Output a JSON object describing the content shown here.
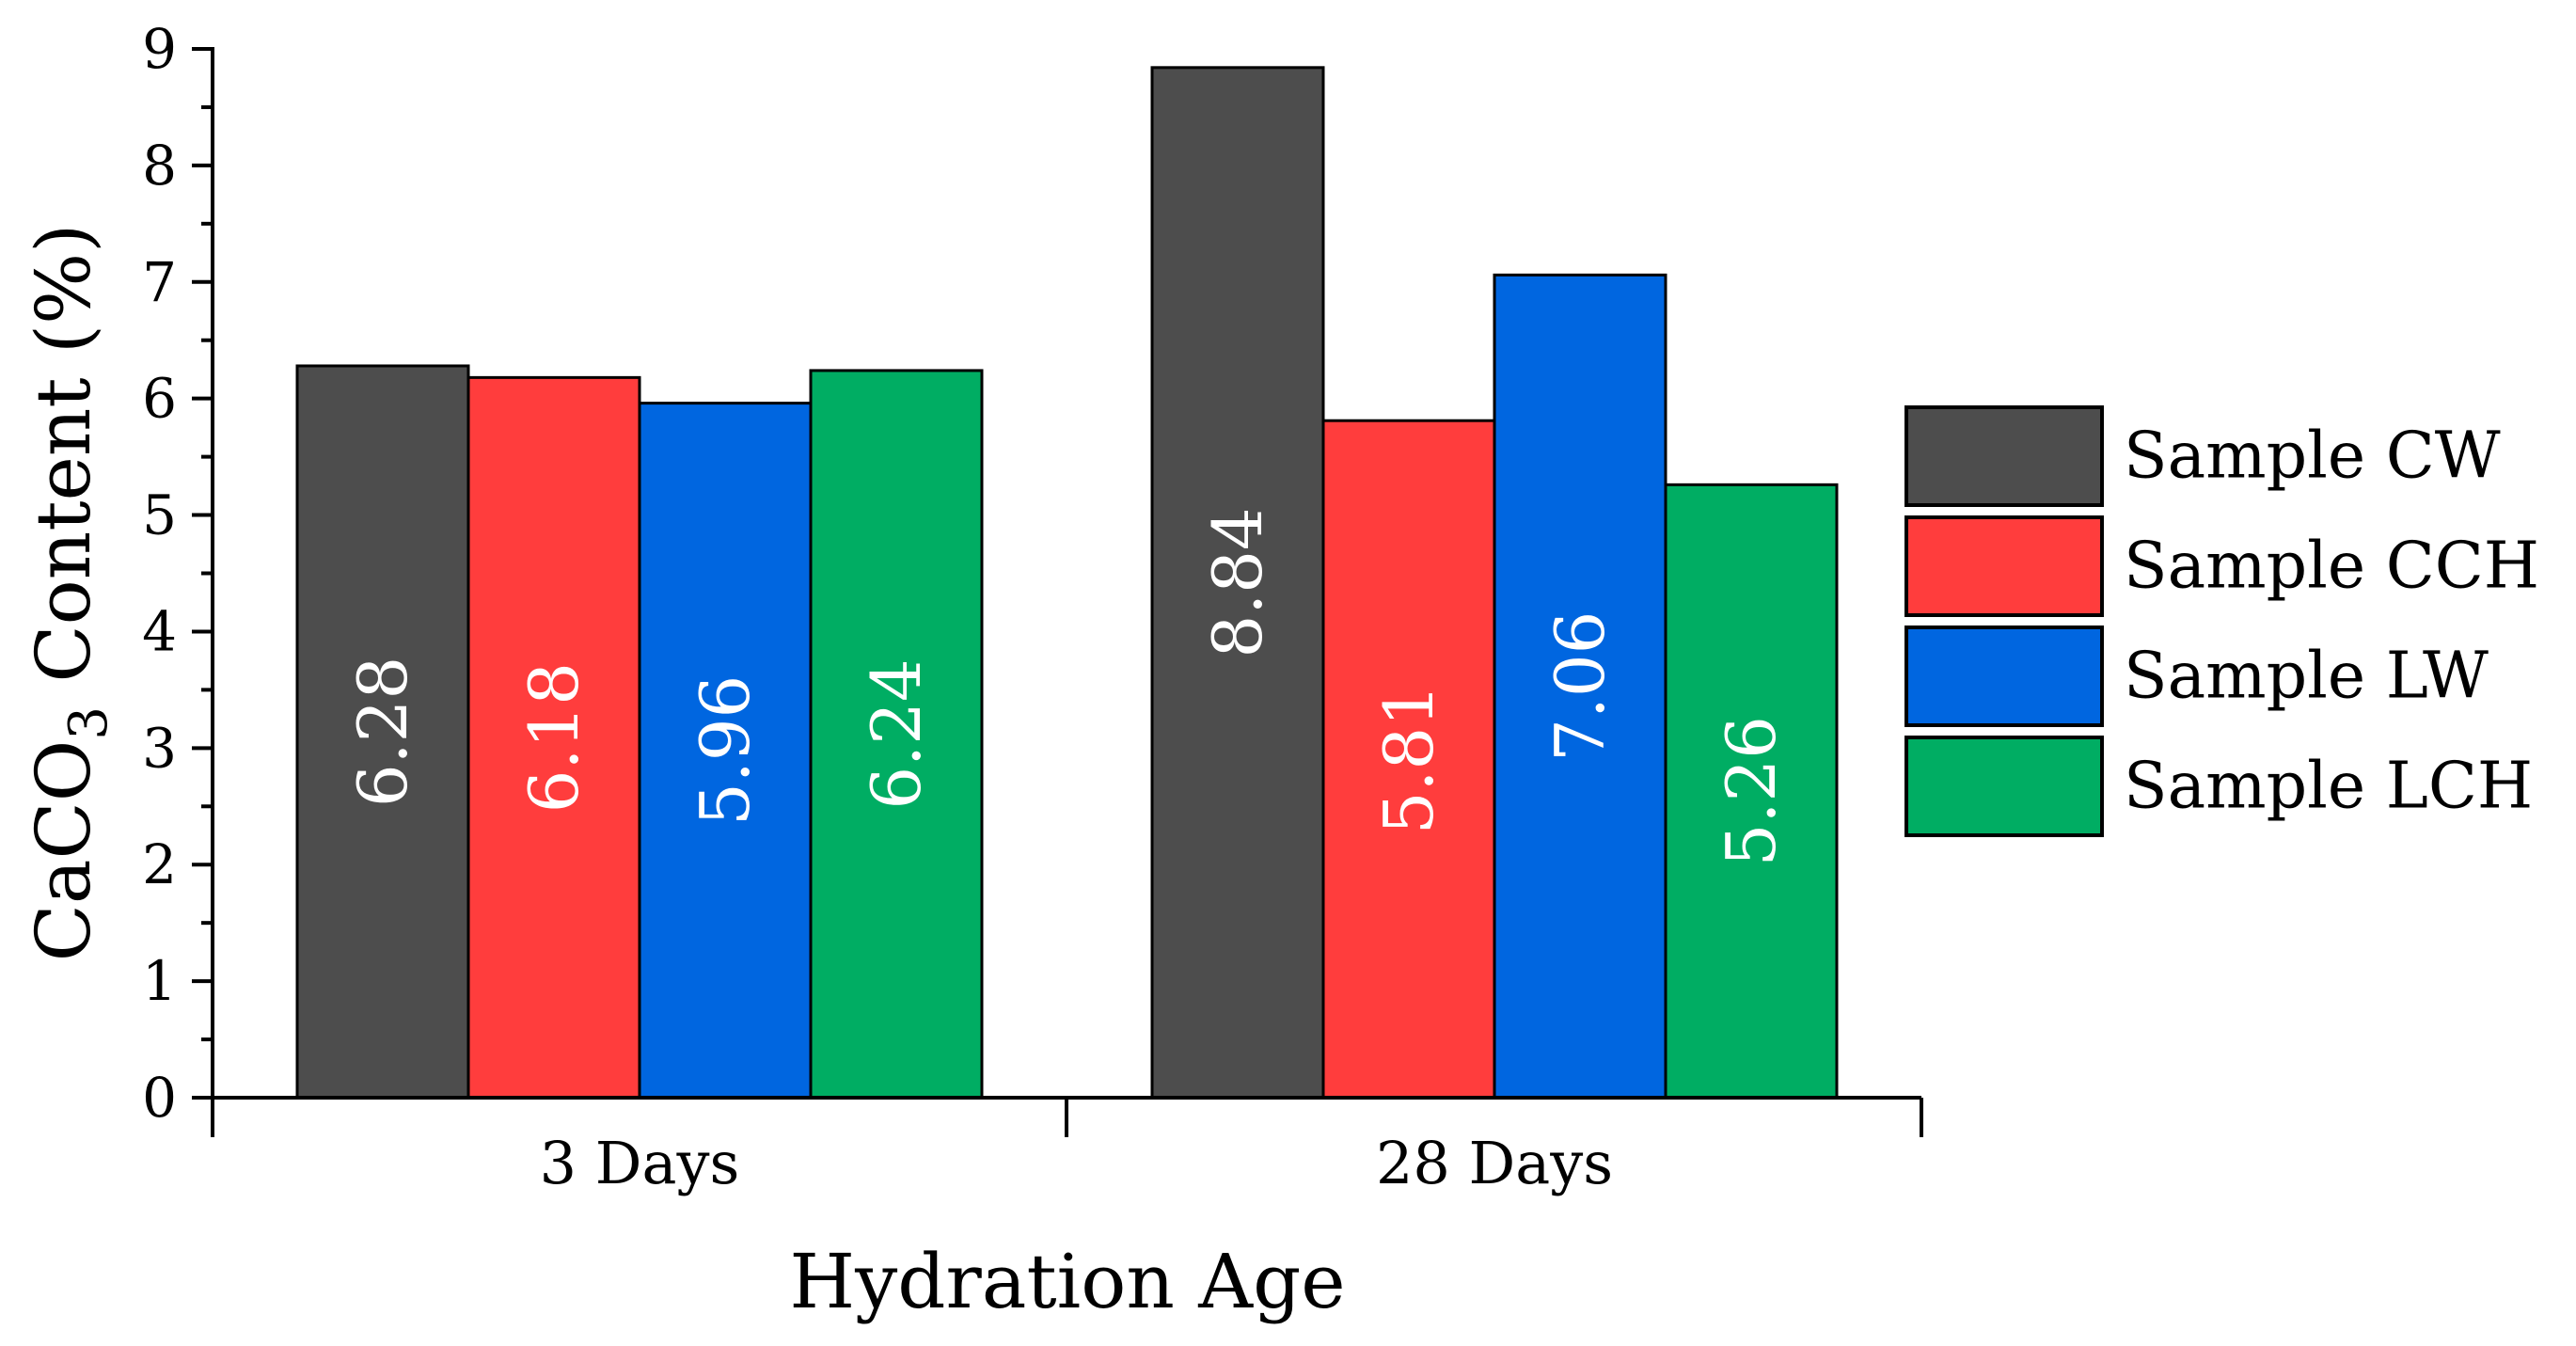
{
  "chart_data": {
    "type": "bar",
    "title": "",
    "xlabel": "Hydration Age",
    "ylabel": {
      "main": "CaCO",
      "subscript": "3",
      "suffix": " Content (%)"
    },
    "categories": [
      "3 Days",
      "28 Days"
    ],
    "ylim": [
      0,
      9
    ],
    "yticks": [
      "0",
      "1",
      "2",
      "3",
      "4",
      "5",
      "6",
      "7",
      "8",
      "9"
    ],
    "grid": false,
    "legend_position": "right",
    "series": [
      {
        "name": "Sample CW",
        "color": "#4d4d4d",
        "values": [
          6.28,
          8.84
        ],
        "labels": [
          "6.28",
          "8.84"
        ]
      },
      {
        "name": "Sample CCH",
        "color": "#ff3d3d",
        "values": [
          6.18,
          5.81
        ],
        "labels": [
          "6.18",
          "5.81"
        ]
      },
      {
        "name": "Sample LW",
        "color": "#0066e0",
        "values": [
          5.96,
          7.06
        ],
        "labels": [
          "5.96",
          "7.06"
        ]
      },
      {
        "name": "Sample LCH",
        "color": "#00ad63",
        "values": [
          6.24,
          5.26
        ],
        "labels": [
          "6.24",
          "5.26"
        ]
      }
    ]
  }
}
